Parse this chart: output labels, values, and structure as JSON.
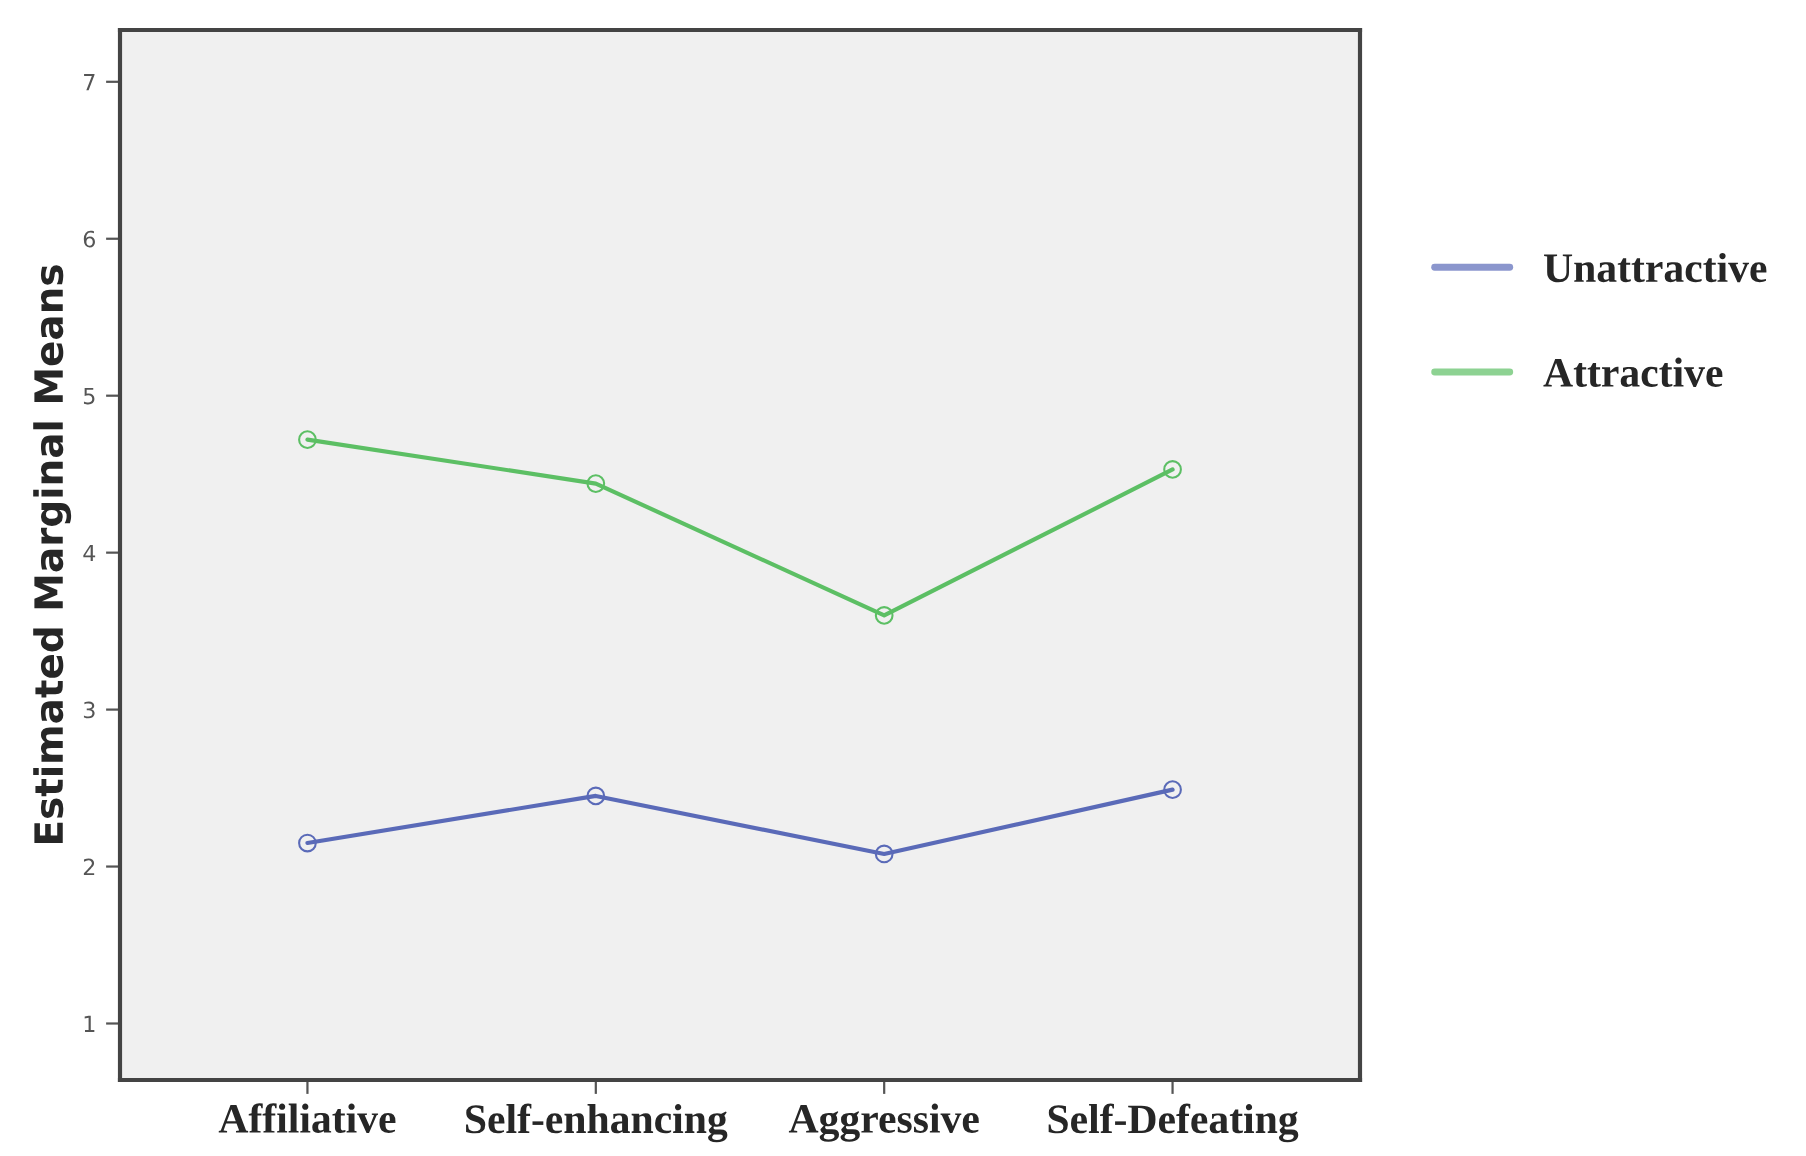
{
  "chart_data": {
    "type": "line",
    "ylabel": "Estimated Marginal Means",
    "categories": [
      "Affiliative",
      "Self-enhancing",
      "Aggressive",
      "Self-Defeating"
    ],
    "series": [
      {
        "name": "Unattractive",
        "color": "#5a6ab8",
        "values": [
          2.15,
          2.45,
          2.08,
          2.49
        ]
      },
      {
        "name": "Attractive",
        "color": "#5cbf64",
        "values": [
          4.72,
          4.44,
          3.6,
          4.53
        ]
      }
    ],
    "ylim": [
      0.64,
      7.33
    ],
    "yticks": [
      1,
      2,
      3,
      4,
      5,
      6,
      7
    ],
    "marker": "circle",
    "line_style": "solid",
    "grid": false,
    "legend": "right"
  }
}
